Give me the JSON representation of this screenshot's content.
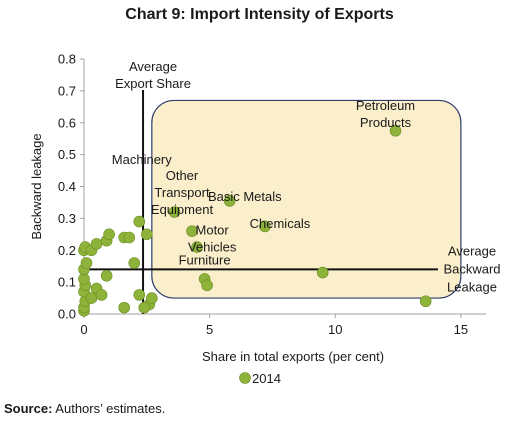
{
  "chart_data": {
    "type": "scatter",
    "title": "Chart 9: Import Intensity of Exports",
    "xlabel": "Share in total exports (per cent)",
    "ylabel": "Backward leakage",
    "xlim": [
      0,
      16
    ],
    "ylim": [
      0,
      0.8
    ],
    "x_ticks": [
      "0",
      "5",
      "10",
      "15"
    ],
    "y_ticks": [
      "0.0",
      "0.1",
      "0.2",
      "0.3",
      "0.4",
      "0.5",
      "0.6",
      "0.7",
      "0.8"
    ],
    "grid": false,
    "legend_position": "bottom",
    "series": [
      {
        "name": "2014",
        "color": "#8db33a",
        "points": [
          {
            "x": 0.0,
            "y": 0.01
          },
          {
            "x": 0.0,
            "y": 0.02
          },
          {
            "x": 0.05,
            "y": 0.04
          },
          {
            "x": 0.0,
            "y": 0.07
          },
          {
            "x": 0.05,
            "y": 0.09
          },
          {
            "x": 0.0,
            "y": 0.11
          },
          {
            "x": 0.0,
            "y": 0.14
          },
          {
            "x": 0.1,
            "y": 0.16
          },
          {
            "x": 0.0,
            "y": 0.2
          },
          {
            "x": 0.05,
            "y": 0.21
          },
          {
            "x": 0.3,
            "y": 0.2
          },
          {
            "x": 0.5,
            "y": 0.22
          },
          {
            "x": 0.9,
            "y": 0.23
          },
          {
            "x": 1.0,
            "y": 0.25
          },
          {
            "x": 1.6,
            "y": 0.24
          },
          {
            "x": 1.8,
            "y": 0.24
          },
          {
            "x": 2.2,
            "y": 0.29
          },
          {
            "x": 2.5,
            "y": 0.25
          },
          {
            "x": 0.3,
            "y": 0.05
          },
          {
            "x": 0.5,
            "y": 0.08
          },
          {
            "x": 0.7,
            "y": 0.06
          },
          {
            "x": 0.9,
            "y": 0.12
          },
          {
            "x": 1.6,
            "y": 0.02
          },
          {
            "x": 2.0,
            "y": 0.16
          },
          {
            "x": 2.2,
            "y": 0.06
          },
          {
            "x": 2.6,
            "y": 0.03
          },
          {
            "x": 2.7,
            "y": 0.05
          },
          {
            "x": 2.4,
            "y": 0.02
          },
          {
            "x": 3.6,
            "y": 0.32
          },
          {
            "x": 4.3,
            "y": 0.26
          },
          {
            "x": 4.5,
            "y": 0.21
          },
          {
            "x": 4.8,
            "y": 0.11
          },
          {
            "x": 4.9,
            "y": 0.09
          },
          {
            "x": 5.8,
            "y": 0.355
          },
          {
            "x": 7.2,
            "y": 0.275
          },
          {
            "x": 9.5,
            "y": 0.13
          },
          {
            "x": 12.4,
            "y": 0.575
          },
          {
            "x": 13.6,
            "y": 0.04
          }
        ]
      }
    ],
    "reference_lines": [
      {
        "orientation": "vertical",
        "value": 2.35,
        "label_lines": [
          "Average",
          "Export Share"
        ]
      },
      {
        "orientation": "horizontal",
        "value": 0.14,
        "label_lines": [
          "Average",
          "Backward",
          "Leakage"
        ]
      }
    ],
    "highlight_region": {
      "x_range": [
        2.7,
        15
      ],
      "y_range": [
        0.05,
        0.67
      ],
      "fill": "#fbeecb",
      "stroke": "#2e3f6e"
    },
    "annotations": [
      {
        "text_lines": [
          "Petroleum",
          "Products"
        ],
        "x": 12.0,
        "y": 0.64
      },
      {
        "text_lines": [
          "Machinery"
        ],
        "x": 2.3,
        "y": 0.47
      },
      {
        "text_lines": [
          "Other",
          "Transport",
          "Equipment"
        ],
        "x": 3.9,
        "y": 0.42
      },
      {
        "text_lines": [
          "Basic Metals"
        ],
        "x": 6.4,
        "y": 0.355
      },
      {
        "text_lines": [
          "Chemicals"
        ],
        "x": 7.8,
        "y": 0.27
      },
      {
        "text_lines": [
          "Motor",
          "Vehicles"
        ],
        "x": 5.1,
        "y": 0.25
      },
      {
        "text_lines": [
          "Furniture"
        ],
        "x": 4.8,
        "y": 0.155
      }
    ]
  },
  "source": {
    "label": "Source:",
    "text": " Authors’ estimates."
  }
}
